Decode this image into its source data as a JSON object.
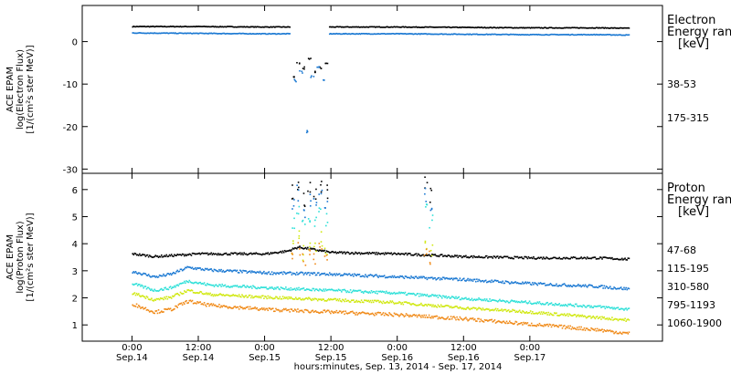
{
  "chart_data": [
    {
      "type": "scatter",
      "ylabel_lines": [
        "ACE EPAM",
        "log(Electron Flux)",
        "[1/(cm²s ster MeV)]"
      ],
      "ylim": [
        -31,
        8.5
      ],
      "yticks": [
        -30,
        -20,
        -10,
        0
      ],
      "legend_title_lines": [
        "Electron",
        "Energy ranges",
        "[keV]"
      ],
      "series": [
        {
          "name": "38-53",
          "color": "#000000",
          "noise": 0.08,
          "points": [
            [
              0,
              3.7
            ],
            [
              12,
              3.7
            ],
            [
              24,
              3.6
            ],
            [
              36,
              3.6
            ],
            [
              48,
              3.6
            ],
            [
              60,
              3.5
            ],
            [
              72,
              3.4
            ],
            [
              84,
              3.4
            ],
            [
              90,
              3.3
            ]
          ],
          "spikes": [
            [
              29,
              -8
            ],
            [
              30,
              -5
            ],
            [
              31,
              -6
            ],
            [
              32,
              -4
            ],
            [
              33,
              -7
            ],
            [
              34,
              -6
            ],
            [
              35,
              -5
            ]
          ]
        },
        {
          "name": "175-315",
          "color": "#1a78d2",
          "noise": 0.08,
          "points": [
            [
              0,
              2.2
            ],
            [
              12,
              2.1
            ],
            [
              24,
              2.0
            ],
            [
              36,
              2.0
            ],
            [
              48,
              2.0
            ],
            [
              60,
              1.9
            ],
            [
              72,
              1.8
            ],
            [
              84,
              1.8
            ],
            [
              90,
              1.7
            ]
          ],
          "spikes": [
            [
              29.5,
              -9
            ],
            [
              30.5,
              -7
            ],
            [
              31.5,
              -21
            ],
            [
              32.5,
              -8
            ],
            [
              33.5,
              -6
            ],
            [
              34.5,
              -9
            ]
          ]
        }
      ]
    },
    {
      "type": "scatter",
      "ylabel_lines": [
        "ACE EPAM",
        "log(Proton Flux)",
        "[1/(cm²s ster MeV)]"
      ],
      "ylim": [
        0.4,
        6.6
      ],
      "yticks": [
        1,
        2,
        3,
        4,
        5,
        6
      ],
      "legend_title_lines": [
        "Proton",
        "Energy ranges",
        "[keV]"
      ],
      "series": [
        {
          "name": "47-68",
          "color": "#000000",
          "noise": 0.04,
          "points": [
            [
              0,
              3.65
            ],
            [
              4,
              3.55
            ],
            [
              8,
              3.6
            ],
            [
              12,
              3.65
            ],
            [
              24,
              3.65
            ],
            [
              28,
              3.75
            ],
            [
              30,
              3.9
            ],
            [
              36,
              3.7
            ],
            [
              48,
              3.65
            ],
            [
              60,
              3.55
            ],
            [
              72,
              3.5
            ],
            [
              84,
              3.5
            ],
            [
              90,
              3.45
            ]
          ],
          "spikes": [
            [
              29,
              5.9
            ],
            [
              30,
              6.2
            ],
            [
              31,
              5.7
            ],
            [
              32,
              6.1
            ],
            [
              33,
              5.8
            ],
            [
              34,
              6.2
            ],
            [
              35,
              5.9
            ],
            [
              53,
              6.2
            ],
            [
              54,
              5.8
            ]
          ]
        },
        {
          "name": "115-195",
          "color": "#1a78d2",
          "noise": 0.05,
          "points": [
            [
              0,
              3.0
            ],
            [
              4,
              2.8
            ],
            [
              7,
              2.9
            ],
            [
              10,
              3.15
            ],
            [
              14,
              3.05
            ],
            [
              24,
              2.95
            ],
            [
              36,
              2.9
            ],
            [
              48,
              2.8
            ],
            [
              60,
              2.7
            ],
            [
              72,
              2.55
            ],
            [
              84,
              2.45
            ],
            [
              90,
              2.35
            ]
          ],
          "spikes": [
            [
              29,
              5.6
            ],
            [
              30,
              5.9
            ],
            [
              31,
              5.2
            ],
            [
              32,
              5.6
            ],
            [
              33,
              5.5
            ],
            [
              34,
              5.8
            ],
            [
              35,
              5.4
            ],
            [
              53,
              5.8
            ],
            [
              54,
              5.5
            ]
          ]
        },
        {
          "name": "310-580",
          "color": "#2ee0d8",
          "noise": 0.05,
          "points": [
            [
              0,
              2.55
            ],
            [
              4,
              2.3
            ],
            [
              7,
              2.4
            ],
            [
              10,
              2.65
            ],
            [
              14,
              2.5
            ],
            [
              24,
              2.4
            ],
            [
              36,
              2.3
            ],
            [
              48,
              2.2
            ],
            [
              60,
              2.0
            ],
            [
              72,
              1.85
            ],
            [
              84,
              1.7
            ],
            [
              90,
              1.6
            ]
          ],
          "spikes": [
            [
              29,
              4.7
            ],
            [
              30,
              5.2
            ],
            [
              31,
              4.6
            ],
            [
              32,
              5.0
            ],
            [
              33,
              4.8
            ],
            [
              34,
              5.1
            ],
            [
              35,
              4.9
            ],
            [
              53,
              5.2
            ],
            [
              54,
              4.9
            ]
          ]
        },
        {
          "name": "795-1193",
          "color": "#d0e810",
          "noise": 0.05,
          "points": [
            [
              0,
              2.2
            ],
            [
              4,
              1.95
            ],
            [
              7,
              2.05
            ],
            [
              10,
              2.3
            ],
            [
              14,
              2.15
            ],
            [
              24,
              2.05
            ],
            [
              36,
              1.95
            ],
            [
              48,
              1.85
            ],
            [
              60,
              1.65
            ],
            [
              72,
              1.5
            ],
            [
              84,
              1.3
            ],
            [
              90,
              1.2
            ]
          ],
          "spikes": [
            [
              29,
              3.9
            ],
            [
              30,
              4.3
            ],
            [
              31,
              3.7
            ],
            [
              32,
              4.1
            ],
            [
              33,
              3.9
            ],
            [
              34,
              4.2
            ],
            [
              35,
              3.8
            ],
            [
              53,
              4.0
            ],
            [
              54,
              3.8
            ]
          ]
        },
        {
          "name": "1060-1900",
          "color": "#f08a18",
          "noise": 0.06,
          "points": [
            [
              0,
              1.8
            ],
            [
              4,
              1.5
            ],
            [
              7,
              1.6
            ],
            [
              10,
              1.9
            ],
            [
              14,
              1.75
            ],
            [
              24,
              1.6
            ],
            [
              36,
              1.5
            ],
            [
              48,
              1.4
            ],
            [
              60,
              1.25
            ],
            [
              72,
              1.05
            ],
            [
              84,
              0.85
            ],
            [
              90,
              0.7
            ]
          ],
          "spikes": [
            [
              29,
              3.6
            ],
            [
              30,
              3.9
            ],
            [
              31,
              3.4
            ],
            [
              32,
              3.7
            ],
            [
              33,
              3.5
            ],
            [
              34,
              3.8
            ],
            [
              35,
              3.3
            ],
            [
              53,
              3.7
            ],
            [
              54,
              3.5
            ]
          ]
        }
      ]
    }
  ],
  "xaxis": {
    "xlim": [
      -9,
      96
    ],
    "data_end": 90,
    "ticks": [
      {
        "pos": 0,
        "time": "0:00",
        "date": "Sep.14"
      },
      {
        "pos": 12,
        "time": "12:00",
        "date": "Sep.14"
      },
      {
        "pos": 24,
        "time": "0:00",
        "date": "Sep.15"
      },
      {
        "pos": 36,
        "time": "12:00",
        "date": "Sep.15"
      },
      {
        "pos": 48,
        "time": "0:00",
        "date": "Sep.16"
      },
      {
        "pos": 60,
        "time": "12:00",
        "date": "Sep.16"
      },
      {
        "pos": 72,
        "time": "0:00",
        "date": "Sep.17"
      }
    ],
    "xlabel": "hours:minutes, Sep. 13, 2014 - Sep. 17, 2014"
  }
}
